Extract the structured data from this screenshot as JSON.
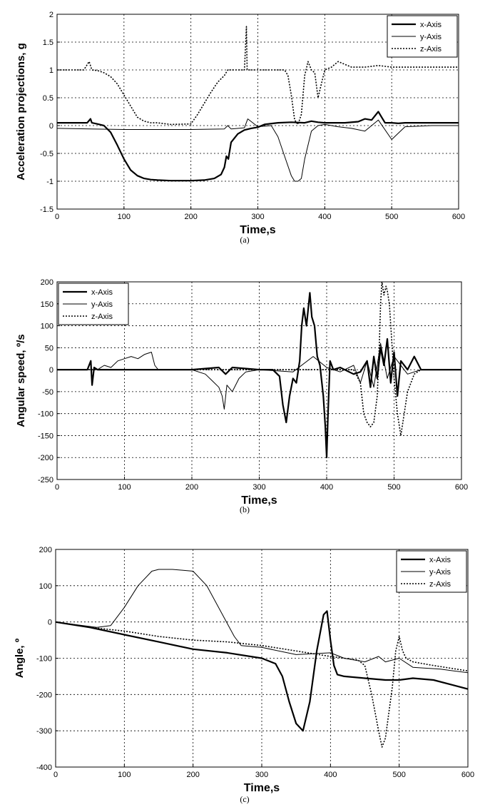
{
  "chart_data": [
    {
      "type": "line",
      "caption": "(a)",
      "xlabel": "Time,s",
      "ylabel": "Acceleration  projections,  g",
      "xlim": [
        0,
        600
      ],
      "ylim": [
        -1.5,
        2
      ],
      "xticks": [
        0,
        100,
        200,
        300,
        400,
        500,
        600
      ],
      "yticks": [
        -1.5,
        -1,
        -0.5,
        0,
        0.5,
        1,
        1.5,
        2
      ],
      "ytick_labels": [
        "-1.5",
        "-1",
        "-0.5",
        "0",
        "0.5",
        "1",
        "1.5",
        "2"
      ],
      "grid": true,
      "legend_position": "top-right",
      "series": [
        {
          "name": "x-Axis",
          "style": "thick",
          "x": [
            0,
            45,
            50,
            52,
            60,
            70,
            80,
            90,
            100,
            110,
            120,
            130,
            140,
            150,
            170,
            200,
            220,
            235,
            245,
            250,
            253,
            256,
            260,
            270,
            280,
            290,
            300,
            310,
            330,
            350,
            370,
            380,
            390,
            400,
            410,
            430,
            450,
            460,
            470,
            480,
            485,
            490,
            500,
            510,
            520,
            540,
            560,
            580,
            600
          ],
          "y": [
            0.05,
            0.05,
            0.12,
            0.05,
            0.03,
            0.0,
            -0.12,
            -0.35,
            -0.6,
            -0.8,
            -0.9,
            -0.95,
            -0.97,
            -0.98,
            -0.99,
            -0.99,
            -0.98,
            -0.95,
            -0.88,
            -0.75,
            -0.55,
            -0.6,
            -0.3,
            -0.15,
            -0.08,
            -0.05,
            -0.03,
            0.02,
            0.05,
            0.06,
            0.05,
            0.08,
            0.06,
            0.05,
            0.05,
            0.05,
            0.07,
            0.12,
            0.1,
            0.25,
            0.15,
            0.05,
            0.05,
            0.04,
            0.05,
            0.05,
            0.05,
            0.05,
            0.05
          ]
        },
        {
          "name": "y-Axis",
          "style": "thin",
          "x": [
            0,
            100,
            200,
            250,
            255,
            260,
            280,
            285,
            300,
            320,
            330,
            340,
            350,
            355,
            360,
            365,
            370,
            380,
            390,
            400,
            420,
            440,
            460,
            480,
            500,
            520,
            560,
            600
          ],
          "y": [
            -0.05,
            -0.07,
            -0.07,
            -0.06,
            0.0,
            -0.06,
            -0.04,
            0.12,
            -0.02,
            0.0,
            -0.2,
            -0.55,
            -0.9,
            -1.0,
            -1.0,
            -0.95,
            -0.6,
            -0.1,
            0.0,
            0.02,
            -0.02,
            -0.05,
            -0.1,
            0.1,
            -0.25,
            -0.02,
            0.0,
            0.0
          ]
        },
        {
          "name": "z-Axis",
          "style": "dotted",
          "x": [
            0,
            40,
            48,
            52,
            60,
            70,
            80,
            90,
            100,
            110,
            120,
            130,
            140,
            150,
            170,
            200,
            210,
            220,
            230,
            240,
            250,
            255,
            260,
            270,
            280,
            283,
            284,
            286,
            300,
            320,
            330,
            340,
            345,
            350,
            355,
            360,
            365,
            370,
            375,
            380,
            385,
            390,
            400,
            410,
            420,
            440,
            460,
            480,
            500,
            520,
            540,
            560,
            580,
            600
          ],
          "y": [
            1.0,
            1.0,
            1.15,
            1.0,
            0.99,
            0.95,
            0.88,
            0.75,
            0.55,
            0.35,
            0.15,
            0.08,
            0.05,
            0.05,
            0.02,
            0.03,
            0.2,
            0.4,
            0.6,
            0.78,
            0.9,
            1.0,
            1.0,
            1.0,
            1.0,
            1.78,
            1.0,
            1.0,
            1.0,
            1.0,
            1.0,
            1.0,
            0.9,
            0.55,
            0.1,
            0.02,
            0.2,
            0.9,
            1.15,
            1.0,
            0.95,
            0.5,
            1.0,
            1.05,
            1.15,
            1.05,
            1.05,
            1.08,
            1.05,
            1.05,
            1.05,
            1.05,
            1.05,
            1.05
          ]
        }
      ]
    },
    {
      "type": "line",
      "caption": "(b)",
      "xlabel": "Time,s",
      "ylabel": "Angular  speed,  º/s",
      "xlim": [
        0,
        600
      ],
      "ylim": [
        -250,
        200
      ],
      "xticks": [
        0,
        100,
        200,
        300,
        400,
        500,
        600
      ],
      "yticks": [
        -250,
        -200,
        -150,
        -100,
        -50,
        0,
        50,
        100,
        150,
        200
      ],
      "ytick_labels": [
        "-250",
        "-200",
        "-150",
        "-100",
        "-50",
        "0",
        "50",
        "100",
        "150",
        "200"
      ],
      "grid": true,
      "legend_position": "top-left",
      "series": [
        {
          "name": "x-Axis",
          "style": "thick",
          "x": [
            0,
            45,
            50,
            52,
            55,
            60,
            100,
            200,
            240,
            250,
            260,
            300,
            320,
            330,
            335,
            340,
            345,
            350,
            355,
            360,
            363,
            366,
            370,
            375,
            378,
            382,
            386,
            390,
            395,
            398,
            400,
            402,
            405,
            410,
            420,
            440,
            450,
            460,
            465,
            470,
            475,
            480,
            485,
            490,
            495,
            500,
            505,
            510,
            520,
            530,
            540,
            560,
            600
          ],
          "y": [
            0,
            0,
            20,
            -35,
            5,
            0,
            0,
            0,
            5,
            -10,
            5,
            0,
            0,
            -15,
            -80,
            -120,
            -60,
            -20,
            -30,
            20,
            100,
            140,
            100,
            175,
            120,
            100,
            30,
            10,
            -60,
            -130,
            -200,
            -100,
            20,
            0,
            5,
            -10,
            -5,
            20,
            -40,
            30,
            -20,
            50,
            10,
            70,
            -30,
            40,
            -60,
            20,
            0,
            30,
            0,
            0,
            0
          ]
        },
        {
          "name": "y-Axis",
          "style": "thin",
          "x": [
            0,
            60,
            70,
            80,
            90,
            100,
            110,
            120,
            130,
            140,
            145,
            150,
            200,
            220,
            230,
            240,
            245,
            248,
            252,
            260,
            270,
            280,
            300,
            350,
            380,
            400,
            420,
            440,
            450,
            460,
            470,
            480,
            490,
            500,
            520,
            540,
            600
          ],
          "y": [
            0,
            0,
            10,
            5,
            20,
            25,
            30,
            25,
            35,
            40,
            10,
            0,
            0,
            -10,
            -25,
            -40,
            -60,
            -90,
            -35,
            -50,
            -20,
            -5,
            0,
            -5,
            30,
            5,
            -5,
            10,
            -30,
            20,
            -40,
            60,
            -20,
            30,
            -10,
            0,
            0
          ]
        },
        {
          "name": "z-Axis",
          "style": "dotted",
          "x": [
            0,
            440,
            450,
            455,
            460,
            465,
            470,
            475,
            478,
            480,
            482,
            485,
            488,
            490,
            493,
            496,
            500,
            505,
            510,
            520,
            530,
            540,
            600
          ],
          "y": [
            0,
            0,
            -30,
            -100,
            -120,
            -130,
            -120,
            -60,
            50,
            150,
            200,
            170,
            190,
            180,
            150,
            80,
            -20,
            -100,
            -150,
            -50,
            -10,
            0,
            0
          ]
        }
      ]
    },
    {
      "type": "line",
      "caption": "(c)",
      "xlabel": "Time,s",
      "ylabel": "Angle,  º",
      "xlim": [
        0,
        600
      ],
      "ylim": [
        -400,
        200
      ],
      "xticks": [
        0,
        100,
        200,
        300,
        400,
        500,
        600
      ],
      "yticks": [
        -400,
        -300,
        -200,
        -100,
        0,
        100,
        200
      ],
      "ytick_labels": [
        "-400",
        "-300",
        "-200",
        "-100",
        "0",
        "100",
        "200"
      ],
      "grid": true,
      "legend_position": "top-right",
      "series": [
        {
          "name": "x-Axis",
          "style": "thick",
          "x": [
            0,
            50,
            100,
            150,
            200,
            250,
            300,
            320,
            330,
            340,
            350,
            360,
            370,
            380,
            390,
            395,
            400,
            405,
            410,
            420,
            450,
            480,
            500,
            520,
            550,
            580,
            600
          ],
          "y": [
            0,
            -15,
            -35,
            -55,
            -75,
            -85,
            -100,
            -115,
            -150,
            -220,
            -280,
            -300,
            -220,
            -80,
            20,
            30,
            -50,
            -120,
            -145,
            -150,
            -155,
            -160,
            -160,
            -155,
            -160,
            -175,
            -185
          ]
        },
        {
          "name": "y-Axis",
          "style": "thin",
          "x": [
            0,
            60,
            80,
            100,
            120,
            140,
            150,
            170,
            200,
            220,
            240,
            260,
            270,
            300,
            350,
            400,
            420,
            450,
            470,
            480,
            500,
            520,
            560,
            600
          ],
          "y": [
            0,
            -15,
            -10,
            40,
            100,
            140,
            145,
            145,
            140,
            100,
            30,
            -40,
            -65,
            -70,
            -90,
            -85,
            -100,
            -110,
            -95,
            -110,
            -100,
            -125,
            -130,
            -140
          ]
        },
        {
          "name": "z-Axis",
          "style": "dotted",
          "x": [
            0,
            50,
            100,
            150,
            200,
            250,
            300,
            350,
            400,
            420,
            440,
            450,
            460,
            470,
            475,
            480,
            490,
            495,
            500,
            505,
            510,
            520,
            550,
            600
          ],
          "y": [
            0,
            -15,
            -25,
            -40,
            -50,
            -55,
            -65,
            -80,
            -95,
            -100,
            -105,
            -120,
            -200,
            -300,
            -345,
            -320,
            -180,
            -80,
            -40,
            -80,
            -100,
            -110,
            -120,
            -135
          ]
        }
      ]
    }
  ]
}
